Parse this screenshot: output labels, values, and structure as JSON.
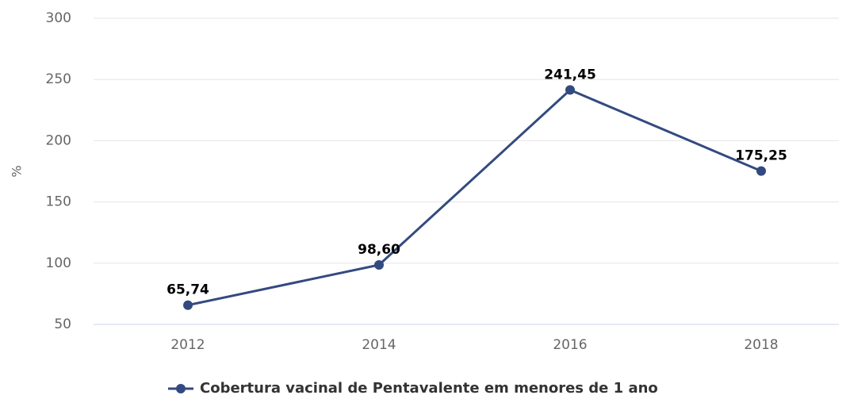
{
  "chart_data": {
    "type": "line",
    "y_label": "%",
    "categories": [
      "2012",
      "2014",
      "2016",
      "2018"
    ],
    "series": [
      {
        "name": "Cobertura vacinal de Pentavalente em menores de 1 ano",
        "color": "#334a80",
        "values": [
          65.74,
          98.6,
          241.45,
          175.25
        ],
        "value_labels": [
          "65,74",
          "98,60",
          "241,45",
          "175,25"
        ]
      }
    ],
    "ylim": [
      50,
      300
    ],
    "yticks": [
      50,
      100,
      150,
      200,
      250,
      300
    ],
    "grid": true,
    "legend": "bottom"
  }
}
